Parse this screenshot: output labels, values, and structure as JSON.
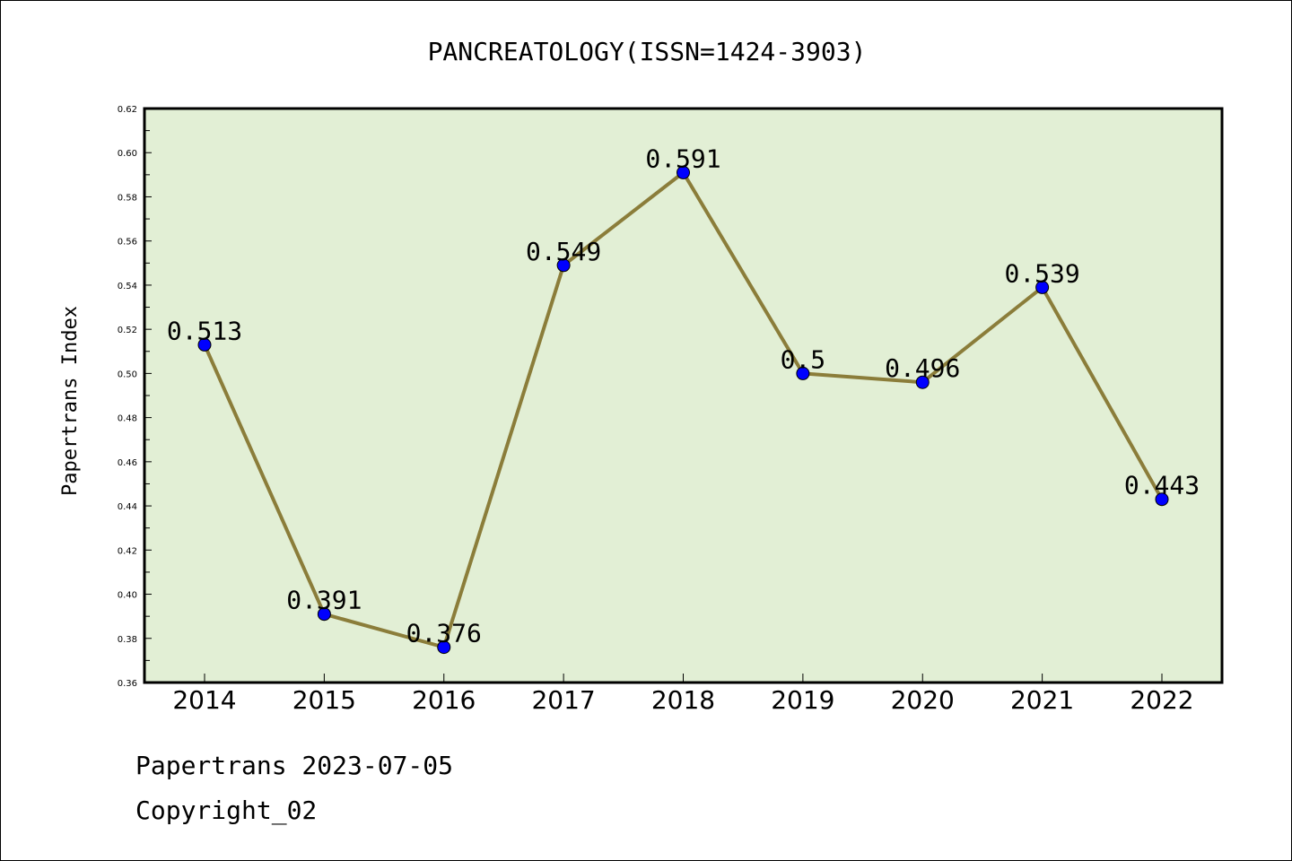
{
  "chart_data": {
    "type": "line",
    "title": "PANCREATOLOGY(ISSN=1424-3903)",
    "xlabel": "",
    "ylabel": "Papertrans Index",
    "categories": [
      "2014",
      "2015",
      "2016",
      "2017",
      "2018",
      "2019",
      "2020",
      "2021",
      "2022"
    ],
    "values": [
      0.513,
      0.391,
      0.376,
      0.549,
      0.591,
      0.5,
      0.496,
      0.539,
      0.443
    ],
    "data_labels": [
      "0.513",
      "0.391",
      "0.376",
      "0.549",
      "0.591",
      "0.5",
      "0.496",
      "0.539",
      "0.443"
    ],
    "ylim": [
      0.36,
      0.62
    ],
    "yticks": [
      "0.36",
      "0.38",
      "0.40",
      "0.42",
      "0.44",
      "0.46",
      "0.48",
      "0.50",
      "0.52",
      "0.54",
      "0.56",
      "0.58",
      "0.60",
      "0.62"
    ],
    "grid": false,
    "colors": {
      "plot_background": "#e2efd5",
      "line": "#8b7d3a",
      "marker": "#0000ff"
    }
  },
  "footer": {
    "line1": "Papertrans 2023-07-05",
    "line2": "Copyright_02"
  }
}
